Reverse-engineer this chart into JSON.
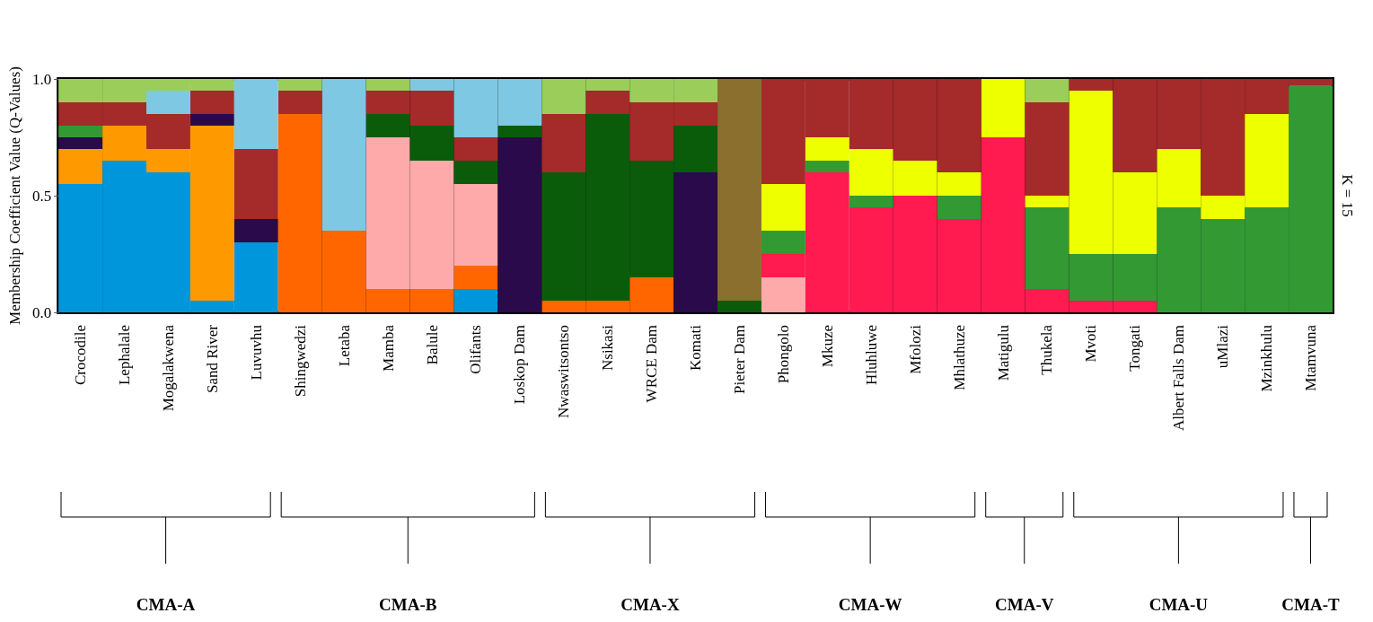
{
  "chart_data": {
    "type": "bar",
    "stacked": true,
    "ylabel": "Membership Coefficient Value (Q-Values)",
    "categories": [
      "Crocodile",
      "Lephalale",
      "Mogalakwena",
      "Sand River",
      "Luvuvhu",
      "Shingwedzi",
      "Letaba",
      "Mamba",
      "Balule",
      "Olifants",
      "Loskop Dam",
      "Nwaswitsontso",
      "Nsikasi",
      "WRCE Dam",
      "Komati",
      "Pieter Dam",
      "Phongolo",
      "Mkuze",
      "Hluhluwe",
      "Mfolozi",
      "Mhlathuze",
      "Matigulu",
      "Thukela",
      "Mvoti",
      "Tongati",
      "Albert Falls Dam",
      "uMlazi",
      "Mzinkhulu",
      "Mtamvuna"
    ],
    "series": [
      {
        "color": "#0096db",
        "values": [
          0.55,
          0.65,
          0.6,
          0.05,
          0.3,
          0,
          0,
          0,
          0,
          0.1,
          0,
          0,
          0,
          0,
          0,
          0,
          0,
          0,
          0,
          0,
          0,
          0,
          0,
          0,
          0,
          0,
          0,
          0,
          0
        ]
      },
      {
        "color": "#ff9900",
        "values": [
          0.15,
          0.15,
          0.1,
          0.75,
          0,
          0,
          0,
          0,
          0,
          0,
          0,
          0,
          0,
          0,
          0,
          0,
          0,
          0,
          0,
          0,
          0,
          0,
          0,
          0,
          0,
          0,
          0,
          0,
          0
        ]
      },
      {
        "color": "#ff6600",
        "values": [
          0,
          0,
          0,
          0,
          0,
          0.85,
          0.35,
          0.1,
          0.1,
          0.1,
          0,
          0.05,
          0.05,
          0.15,
          0,
          0,
          0,
          0,
          0,
          0,
          0,
          0,
          0,
          0,
          0,
          0,
          0,
          0,
          0
        ]
      },
      {
        "color": "#ffaaaa",
        "values": [
          0,
          0,
          0,
          0,
          0,
          0,
          0,
          0.65,
          0.55,
          0.35,
          0,
          0,
          0,
          0,
          0,
          0,
          0.15,
          0,
          0,
          0,
          0,
          0,
          0,
          0,
          0,
          0,
          0,
          0,
          0
        ]
      },
      {
        "color": "#2a0a4a",
        "values": [
          0.05,
          0,
          0,
          0.05,
          0.1,
          0,
          0,
          0,
          0,
          0,
          0.75,
          0,
          0,
          0,
          0.6,
          0,
          0,
          0,
          0,
          0,
          0,
          0,
          0,
          0,
          0,
          0,
          0,
          0,
          0
        ]
      },
      {
        "color": "#0a5c0a",
        "values": [
          0,
          0,
          0,
          0,
          0,
          0,
          0,
          0.1,
          0.15,
          0.1,
          0.05,
          0.55,
          0.8,
          0.5,
          0.2,
          0.05,
          0,
          0,
          0,
          0,
          0,
          0,
          0,
          0,
          0,
          0,
          0,
          0,
          0
        ]
      },
      {
        "color": "#8a6f2e",
        "values": [
          0,
          0,
          0,
          0,
          0,
          0,
          0,
          0,
          0,
          0,
          0,
          0,
          0,
          0,
          0,
          0.95,
          0,
          0,
          0,
          0,
          0,
          0,
          0,
          0,
          0,
          0,
          0,
          0,
          0
        ]
      },
      {
        "color": "#ff1a4f",
        "values": [
          0,
          0,
          0,
          0,
          0,
          0,
          0,
          0,
          0,
          0,
          0,
          0,
          0,
          0,
          0,
          0,
          0.1,
          0.6,
          0.45,
          0.5,
          0.4,
          0.75,
          0.1,
          0.05,
          0.05,
          0,
          0,
          0,
          0
        ]
      },
      {
        "color": "#339933",
        "values": [
          0.05,
          0,
          0,
          0,
          0,
          0,
          0,
          0,
          0,
          0,
          0,
          0,
          0,
          0,
          0,
          0,
          0.1,
          0.05,
          0.05,
          0,
          0.1,
          0,
          0.35,
          0.2,
          0.2,
          0.45,
          0.4,
          0.45,
          0.97
        ]
      },
      {
        "color": "#eeff00",
        "values": [
          0,
          0,
          0,
          0,
          0,
          0,
          0,
          0,
          0,
          0,
          0,
          0,
          0,
          0,
          0,
          0,
          0.2,
          0.1,
          0.2,
          0.15,
          0.1,
          0.25,
          0.05,
          0.7,
          0.35,
          0.25,
          0.1,
          0.4,
          0
        ]
      },
      {
        "color": "#a52a2a",
        "values": [
          0.1,
          0.1,
          0.15,
          0.1,
          0.3,
          0.1,
          0,
          0.1,
          0.15,
          0.1,
          0,
          0.25,
          0.1,
          0.25,
          0.1,
          0,
          0.45,
          0.25,
          0.3,
          0.35,
          0.4,
          0,
          0.4,
          0.05,
          0.4,
          0.3,
          0.5,
          0.15,
          0.03
        ]
      },
      {
        "color": "#7ec8e3",
        "values": [
          0,
          0,
          0.1,
          0,
          0.3,
          0,
          0.65,
          0,
          0.05,
          0.25,
          0.2,
          0,
          0,
          0,
          0,
          0,
          0,
          0,
          0,
          0,
          0,
          0,
          0,
          0,
          0,
          0,
          0,
          0,
          0
        ]
      },
      {
        "color": "#9acd5a",
        "values": [
          0.1,
          0.1,
          0.05,
          0.05,
          0,
          0.05,
          0,
          0.05,
          0,
          0,
          0,
          0.15,
          0.05,
          0.1,
          0.1,
          0,
          0,
          0,
          0,
          0,
          0,
          0,
          0.1,
          0,
          0,
          0,
          0,
          0,
          0
        ]
      }
    ],
    "ylim": [
      0,
      1
    ],
    "yticks": [
      {
        "value": 0,
        "label": "0.0"
      },
      {
        "value": 0.5,
        "label": "0.5"
      },
      {
        "value": 1,
        "label": "1.0"
      }
    ],
    "grid": "x",
    "annotations": [
      "K = 15",
      "CMA-A",
      "CMA-B",
      "CMA-X",
      "CMA-W",
      "CMA-V",
      "CMA-U",
      "CMA-T"
    ]
  }
}
